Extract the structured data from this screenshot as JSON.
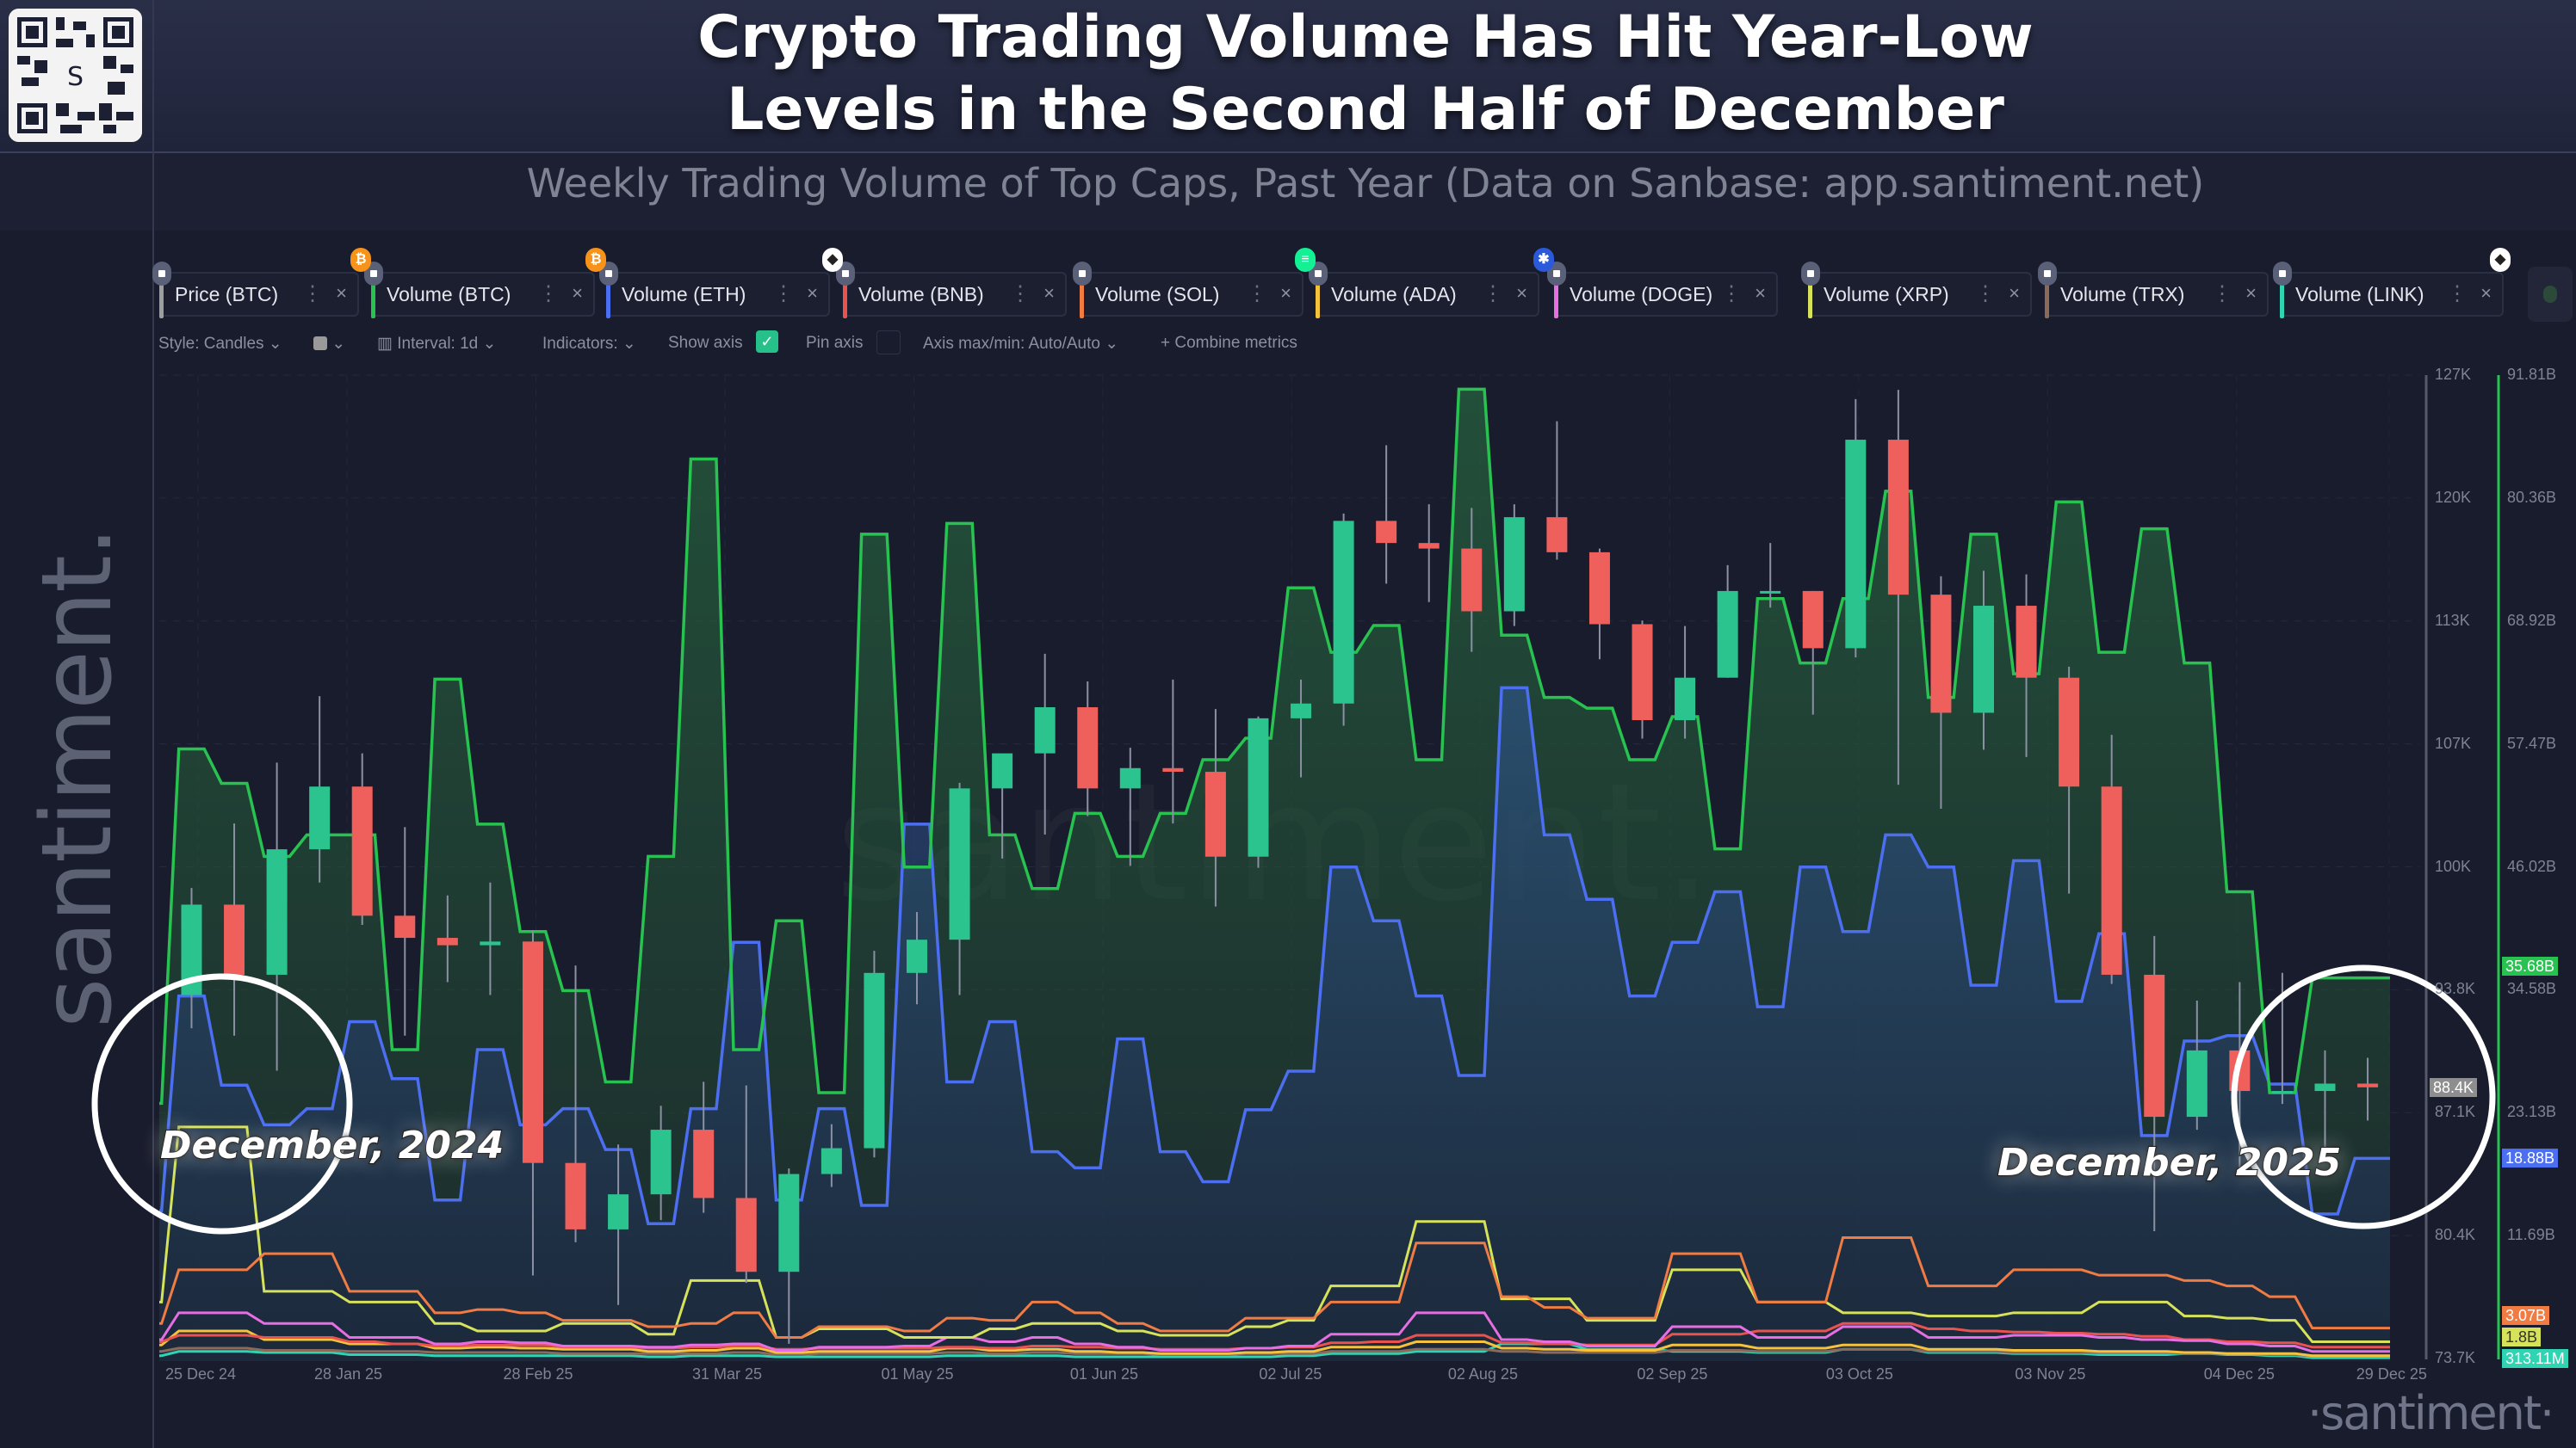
{
  "header": {
    "title_line1": "Crypto Trading Volume Has Hit Year-Low",
    "title_line2": "Levels in the Second Half of December",
    "subtitle": "Weekly Trading Volume of Top Caps, Past Year (Data on Sanbase: app.santiment.net)",
    "qr_icon": "qr-code-icon",
    "side_logo": "santiment.",
    "watermark": "santiment.",
    "brand_logo": "·santiment·"
  },
  "tabs": [
    {
      "label": "Price (BTC)",
      "color": "#9e9e9e"
    },
    {
      "label": "Volume (BTC)",
      "color": "#27c24f",
      "coin": "bitcoin-icon",
      "coin_color": "#f7931a"
    },
    {
      "label": "Volume (ETH)",
      "color": "#4c6ef0",
      "coin": "bitcoin-icon",
      "coin_color": "#f7931a"
    },
    {
      "label": "Volume (BNB)",
      "color": "#e9534f",
      "coin": "ethereum-icon",
      "coin_color": "#ffffff"
    },
    {
      "label": "Volume (SOL)",
      "color": "#f07b43"
    },
    {
      "label": "Volume (ADA)",
      "color": "#f5c23e",
      "coin": "solana-icon",
      "coin_color": "#14f195"
    },
    {
      "label": "Volume (DOGE)",
      "color": "#e66ee2",
      "coin": "cardano-icon",
      "coin_color": "#2a5ada"
    },
    {
      "label": "Volume (XRP)",
      "color": "#d6e35a"
    },
    {
      "label": "Volume (TRX)",
      "color": "#8b6a5a"
    },
    {
      "label": "Volume (LINK)",
      "color": "#2fd4b2",
      "coin_after": "ethereum-icon"
    }
  ],
  "toolbar": {
    "style": "Style: Candles",
    "interval": "Interval: 1d",
    "indicators": "Indicators:",
    "show_axis": "Show axis",
    "show_axis_checked": true,
    "pin_axis": "Pin axis",
    "pin_axis_checked": false,
    "axis_maxmin": "Axis max/min: Auto/Auto",
    "combine": "Combine metrics"
  },
  "annotations": {
    "left": "December, 2024",
    "right": "December, 2025"
  },
  "chart_data": {
    "type": "line",
    "title": "Crypto Trading Volume Has Hit Year-Low Levels in the Second Half of December",
    "subtitle": "Weekly Trading Volume of Top Caps, Past Year (Data on Sanbase: app.santiment.net)",
    "x_tick_labels": [
      "25 Dec 24",
      "28 Jan 25",
      "28 Feb 25",
      "31 Mar 25",
      "01 May 25",
      "01 Jun 25",
      "02 Jul 25",
      "02 Aug 25",
      "02 Sep 25",
      "03 Oct 25",
      "03 Nov 25",
      "04 Dec 25",
      "29 Dec 25"
    ],
    "x_tick_dates": [
      "2024-12-25",
      "2025-01-28",
      "2025-02-28",
      "2025-03-31",
      "2025-05-01",
      "2025-06-01",
      "2025-07-02",
      "2025-08-02",
      "2025-09-02",
      "2025-10-03",
      "2025-11-03",
      "2025-12-04",
      "2025-12-29"
    ],
    "price_axis": {
      "ticks": [
        "127K",
        "120K",
        "113K",
        "107K",
        "100K",
        "93.8K",
        "87.1K",
        "80.4K",
        "73.7K"
      ],
      "range": [
        73.7,
        127
      ],
      "unit": "K USD",
      "last_value_label": "88.4K"
    },
    "volume_axis": {
      "ticks": [
        "91.81B",
        "80.36B",
        "68.92B",
        "57.47B",
        "46.02B",
        "34.58B",
        "23.13B",
        "11.69B"
      ],
      "range": [
        0.24,
        91.81
      ],
      "unit": "B USD"
    },
    "grid": true,
    "x": [
      "2024-12-23",
      "2024-12-30",
      "2025-01-06",
      "2025-01-13",
      "2025-01-20",
      "2025-01-27",
      "2025-02-03",
      "2025-02-10",
      "2025-02-17",
      "2025-02-24",
      "2025-03-03",
      "2025-03-10",
      "2025-03-17",
      "2025-03-24",
      "2025-03-31",
      "2025-04-07",
      "2025-04-14",
      "2025-04-21",
      "2025-04-28",
      "2025-05-05",
      "2025-05-12",
      "2025-05-19",
      "2025-05-26",
      "2025-06-02",
      "2025-06-09",
      "2025-06-16",
      "2025-06-23",
      "2025-06-30",
      "2025-07-07",
      "2025-07-14",
      "2025-07-21",
      "2025-07-28",
      "2025-08-04",
      "2025-08-11",
      "2025-08-18",
      "2025-08-25",
      "2025-09-01",
      "2025-09-08",
      "2025-09-15",
      "2025-09-22",
      "2025-09-29",
      "2025-10-06",
      "2025-10-13",
      "2025-10-20",
      "2025-10-27",
      "2025-11-03",
      "2025-11-10",
      "2025-11-17",
      "2025-11-24",
      "2025-12-01",
      "2025-12-08",
      "2025-12-15",
      "2025-12-22"
    ],
    "price_btc_ohlc": [
      [
        95.1,
        99.5,
        92.5,
        93.4
      ],
      [
        93.4,
        99.2,
        91.6,
        98.3
      ],
      [
        98.3,
        102.7,
        91.2,
        94.5
      ],
      [
        94.5,
        106.0,
        89.3,
        101.3
      ],
      [
        101.3,
        109.6,
        99.5,
        104.7
      ],
      [
        104.7,
        106.5,
        97.2,
        97.7
      ],
      [
        97.7,
        102.5,
        91.2,
        96.5
      ],
      [
        96.5,
        98.8,
        94.1,
        96.1
      ],
      [
        96.1,
        99.5,
        93.4,
        96.3
      ],
      [
        96.3,
        96.9,
        78.2,
        84.3
      ],
      [
        84.3,
        95.0,
        80.0,
        80.7
      ],
      [
        80.7,
        85.3,
        76.6,
        82.6
      ],
      [
        82.6,
        87.4,
        81.2,
        86.1
      ],
      [
        86.1,
        88.7,
        81.6,
        82.4
      ],
      [
        82.4,
        88.5,
        77.8,
        78.4
      ],
      [
        78.4,
        84.0,
        74.5,
        83.7
      ],
      [
        83.7,
        86.4,
        83.0,
        85.1
      ],
      [
        85.1,
        95.8,
        84.6,
        94.6
      ],
      [
        94.6,
        97.9,
        92.9,
        96.4
      ],
      [
        96.4,
        104.9,
        93.4,
        104.6
      ],
      [
        104.6,
        105.8,
        100.8,
        106.5
      ],
      [
        106.5,
        111.9,
        102.1,
        109.0
      ],
      [
        109.0,
        110.4,
        103.1,
        104.6
      ],
      [
        104.6,
        106.8,
        100.4,
        105.7
      ],
      [
        105.7,
        110.5,
        102.7,
        105.5
      ],
      [
        105.5,
        108.9,
        98.2,
        100.9
      ],
      [
        100.9,
        108.5,
        100.3,
        108.4
      ],
      [
        108.4,
        110.5,
        105.2,
        109.2
      ],
      [
        109.2,
        119.5,
        108.0,
        119.1
      ],
      [
        119.1,
        123.2,
        115.7,
        117.9
      ],
      [
        117.9,
        120.0,
        114.7,
        117.6
      ],
      [
        117.6,
        119.8,
        112.0,
        114.2
      ],
      [
        114.2,
        120.0,
        113.4,
        119.3
      ],
      [
        119.3,
        124.5,
        117.0,
        117.4
      ],
      [
        117.4,
        117.6,
        111.6,
        113.5
      ],
      [
        113.5,
        113.7,
        107.3,
        108.3
      ],
      [
        108.3,
        113.4,
        107.3,
        110.6
      ],
      [
        110.6,
        116.7,
        110.6,
        115.3
      ],
      [
        115.3,
        117.9,
        114.4,
        115.3
      ],
      [
        115.3,
        115.3,
        108.6,
        112.2
      ],
      [
        112.2,
        125.7,
        111.7,
        123.5
      ],
      [
        123.5,
        126.2,
        104.8,
        115.1
      ],
      [
        115.1,
        116.1,
        103.5,
        108.7
      ],
      [
        108.7,
        116.4,
        106.7,
        114.5
      ],
      [
        114.5,
        116.2,
        106.3,
        110.6
      ],
      [
        110.6,
        111.2,
        98.9,
        104.7
      ],
      [
        104.7,
        107.5,
        94.0,
        94.5
      ],
      [
        94.5,
        96.6,
        80.6,
        86.8
      ],
      [
        86.8,
        93.1,
        86.1,
        90.4
      ],
      [
        90.4,
        94.1,
        83.8,
        88.2
      ],
      [
        88.2,
        94.6,
        87.5,
        88.2
      ],
      [
        88.2,
        90.4,
        84.5,
        88.6
      ],
      [
        88.6,
        90.0,
        86.6,
        88.4
      ]
    ],
    "series": [
      {
        "name": "Volume (BTC)",
        "color": "#27c24f",
        "fill": true,
        "last_label": "35.68B",
        "values": [
          24,
          57,
          53.8,
          47,
          49,
          49,
          29,
          63.5,
          50,
          40,
          34.5,
          26,
          47,
          84,
          29,
          41,
          25,
          77,
          46,
          78,
          49,
          44,
          51,
          47,
          51,
          56,
          58,
          72,
          66,
          68.5,
          56,
          90.5,
          67.6,
          61.8,
          60.8,
          56,
          60,
          47.7,
          71,
          65,
          71,
          81,
          61.8,
          77,
          64,
          80,
          66,
          77.5,
          65,
          43.7,
          25,
          35.68,
          35.68
        ]
      },
      {
        "name": "Volume (ETH)",
        "color": "#4c6ef0",
        "fill": true,
        "last_label": "18.88B",
        "values": [
          14,
          34,
          25.7,
          22,
          23.5,
          31.6,
          26.3,
          15,
          29,
          22,
          23.5,
          19.7,
          12.8,
          23.5,
          39,
          15,
          23.5,
          14.5,
          50,
          26,
          31.6,
          19.5,
          18,
          30,
          19.5,
          16.7,
          23.4,
          27,
          46,
          41,
          34,
          26.6,
          62.7,
          49,
          43,
          34,
          39,
          43.7,
          33,
          46,
          40,
          49,
          46,
          35,
          46.6,
          33.5,
          39.8,
          21,
          29.8,
          30.3,
          25.8,
          13.7,
          18.88
        ]
      },
      {
        "name": "Volume (SOL)",
        "color": "#f07b43",
        "last_label": "3.07B",
        "values": [
          3.5,
          8.5,
          8.5,
          10,
          10,
          6.5,
          6.5,
          4.5,
          4.8,
          4.5,
          3.8,
          3.8,
          3.2,
          3.5,
          4.5,
          2.2,
          3.2,
          3.2,
          2.8,
          4,
          3.8,
          5.5,
          4.5,
          3.5,
          2.8,
          2.8,
          4,
          4,
          5.5,
          5.5,
          11,
          11,
          6,
          5,
          4,
          4,
          10,
          10,
          5.5,
          5.5,
          11.5,
          11.5,
          7,
          7,
          8.5,
          8.5,
          8,
          8,
          7.5,
          7,
          6,
          3.07,
          3.07
        ]
      },
      {
        "name": "Volume (XRP)",
        "color": "#d6e35a",
        "last_label": "1.8B",
        "values": [
          5.5,
          21.8,
          21.8,
          6.5,
          6.5,
          5.5,
          5.5,
          3.5,
          2.8,
          2.8,
          3.5,
          3.5,
          2.5,
          7.5,
          7.5,
          2.2,
          3,
          3,
          2.2,
          2.2,
          3,
          3.5,
          3.5,
          2.8,
          2.4,
          2.4,
          3.2,
          3.8,
          7,
          7,
          13,
          13,
          5.8,
          5.8,
          3.8,
          3.8,
          8.5,
          8.5,
          5.5,
          5.5,
          4.5,
          4.5,
          4.2,
          4.2,
          4.5,
          4.5,
          5.5,
          5.5,
          4.2,
          4,
          3.8,
          1.8,
          1.8
        ]
      },
      {
        "name": "Volume (DOGE)",
        "color": "#e66ee2",
        "values": [
          2,
          4.5,
          4.5,
          3.5,
          3.5,
          2.2,
          2.2,
          1.6,
          1.8,
          1.7,
          1.4,
          1.4,
          1.3,
          1.5,
          1.6,
          1,
          1.3,
          1.3,
          1.4,
          2.2,
          1.8,
          2.2,
          1.6,
          1.3,
          1,
          1,
          1.2,
          1.4,
          2.5,
          2.5,
          4.5,
          4.5,
          2,
          1.8,
          1.4,
          1.4,
          3.2,
          3.2,
          2.2,
          2.2,
          3.2,
          3.2,
          2.2,
          2.2,
          2.4,
          2.4,
          2.2,
          2,
          1.9,
          1.6,
          1.4,
          0.9,
          0.9
        ]
      },
      {
        "name": "Volume (BNB)",
        "color": "#e9534f",
        "values": [
          1.8,
          2.4,
          2.4,
          2.2,
          2.2,
          1.8,
          1.6,
          1.4,
          1.5,
          1.5,
          1.3,
          1.3,
          1.2,
          1.3,
          1.4,
          1.1,
          1.2,
          1.2,
          1.2,
          1.3,
          1.2,
          1.4,
          1.3,
          1.2,
          1.1,
          1.1,
          1.2,
          1.3,
          1.7,
          1.8,
          2.4,
          2.4,
          1.7,
          1.6,
          1.5,
          1.5,
          2.5,
          2.5,
          2.8,
          2.8,
          3.5,
          3.5,
          3,
          2.8,
          2.7,
          2.6,
          2.5,
          2.3,
          2,
          1.8,
          1.7,
          1.3,
          1.3
        ]
      },
      {
        "name": "Volume (ADA)",
        "color": "#f5c23e",
        "values": [
          1.5,
          2.8,
          2.8,
          2,
          2,
          1.6,
          1.6,
          1.2,
          1.3,
          1.2,
          1.1,
          1.1,
          0.9,
          1,
          1.2,
          0.8,
          0.9,
          0.9,
          0.9,
          1.2,
          1,
          1.1,
          0.9,
          0.8,
          0.7,
          0.7,
          0.8,
          0.9,
          1.3,
          1.3,
          1.8,
          1.8,
          1.2,
          1.1,
          1,
          1,
          1.5,
          1.5,
          1.2,
          1.2,
          1.5,
          1.5,
          1.1,
          1.1,
          1,
          1,
          0.9,
          0.9,
          0.8,
          0.7,
          0.7,
          0.5,
          0.5
        ]
      },
      {
        "name": "Volume (TRX)",
        "color": "#8b6a5a",
        "values": [
          0.9,
          1.2,
          1.2,
          1,
          1,
          0.9,
          0.9,
          0.8,
          0.8,
          0.8,
          0.7,
          0.7,
          0.7,
          0.7,
          0.8,
          0.6,
          0.7,
          0.7,
          0.7,
          0.8,
          0.7,
          0.8,
          0.7,
          0.7,
          0.6,
          0.6,
          0.7,
          0.7,
          0.9,
          0.9,
          1.1,
          1.1,
          0.9,
          0.8,
          0.8,
          0.8,
          1,
          1,
          0.9,
          0.9,
          1.1,
          1.1,
          0.9,
          0.9,
          0.8,
          0.8,
          0.8,
          0.8,
          0.7,
          0.7,
          0.6,
          0.5,
          0.5
        ]
      },
      {
        "name": "Volume (LINK)",
        "color": "#2fd4b2",
        "last_label": "313.11M",
        "values": [
          0.5,
          0.9,
          0.9,
          0.8,
          0.8,
          0.6,
          0.6,
          0.5,
          0.5,
          0.5,
          0.5,
          0.5,
          0.4,
          0.5,
          0.5,
          0.4,
          0.4,
          0.4,
          0.4,
          0.5,
          0.5,
          0.5,
          0.4,
          0.4,
          0.4,
          0.4,
          0.4,
          0.5,
          0.7,
          0.7,
          0.9,
          0.9,
          1.6,
          1.6,
          1.1,
          1.1,
          0.9,
          0.9,
          0.8,
          0.8,
          1.1,
          1.1,
          0.8,
          0.8,
          0.7,
          0.7,
          0.6,
          0.6,
          0.7,
          0.6,
          0.5,
          0.313,
          0.313
        ]
      }
    ],
    "candle_up_color": "#2bc48f",
    "candle_down_color": "#ef5f5c"
  }
}
